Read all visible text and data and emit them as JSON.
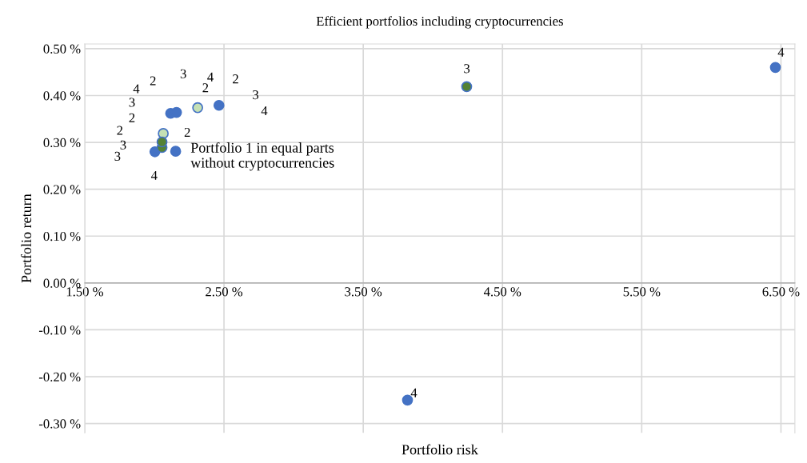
{
  "chart_data": {
    "type": "scatter",
    "title": "Efficient portfolios including cryptocurrencies",
    "xlabel": "Portfolio risk",
    "ylabel": "Portfolio return",
    "series": [
      {
        "color": "#4472c4",
        "x": [
          2.004,
          2.153,
          2.117,
          2.159,
          2.464,
          6.46,
          3.818
        ],
        "values": [
          0.28,
          0.281,
          0.362,
          0.364,
          0.379,
          0.46,
          -0.25
        ]
      },
      {
        "color": "#c5e0b4",
        "x": [
          2.064,
          2.311
        ],
        "values": [
          0.319,
          0.374
        ]
      },
      {
        "color": "#548235",
        "x": [
          2.055,
          2.055,
          4.243
        ],
        "values": [
          0.289,
          0.301,
          0.419
        ]
      }
    ],
    "annotations": [
      "3",
      "4",
      "2",
      "2",
      "4",
      "2",
      "3",
      "3",
      "4",
      "2",
      "2",
      "2",
      "3",
      "3",
      "4",
      "3",
      "4",
      {
        "text": "4",
        "x": 3.864,
        "y": -0.237
      },
      "Portfolio 1 in equal parts\nwithout cryptocurrencies"
    ],
    "xlim": [
      1.5,
      6.6
    ],
    "ylim": [
      -0.32,
      0.51
    ],
    "xticks": [
      {
        "value": 1.5,
        "label": "1.50 %"
      },
      {
        "value": 2.5,
        "label": "2.50 %"
      },
      {
        "value": 3.5,
        "label": "3.50 %"
      },
      {
        "value": 4.5,
        "label": "4.50 %"
      },
      {
        "value": 5.5,
        "label": "5.50 %"
      },
      {
        "value": 6.5,
        "label": "6.50 %"
      }
    ],
    "yticks": [
      {
        "value": -0.3,
        "label": "-0.30 %"
      },
      {
        "value": -0.2,
        "label": "-0.20 %"
      },
      {
        "value": -0.1,
        "label": "-0.10 %"
      },
      {
        "value": 0,
        "label": "0.00 %"
      },
      {
        "value": 0.1,
        "label": "0.10 %"
      },
      {
        "value": 0.2,
        "label": "0.20 %"
      },
      {
        "value": 0.3,
        "label": "0.30 %"
      },
      {
        "value": 0.4,
        "label": "0.40 %"
      },
      {
        "value": 0.5,
        "label": "0.50 %"
      }
    ],
    "grid": true,
    "marker": "circle"
  }
}
